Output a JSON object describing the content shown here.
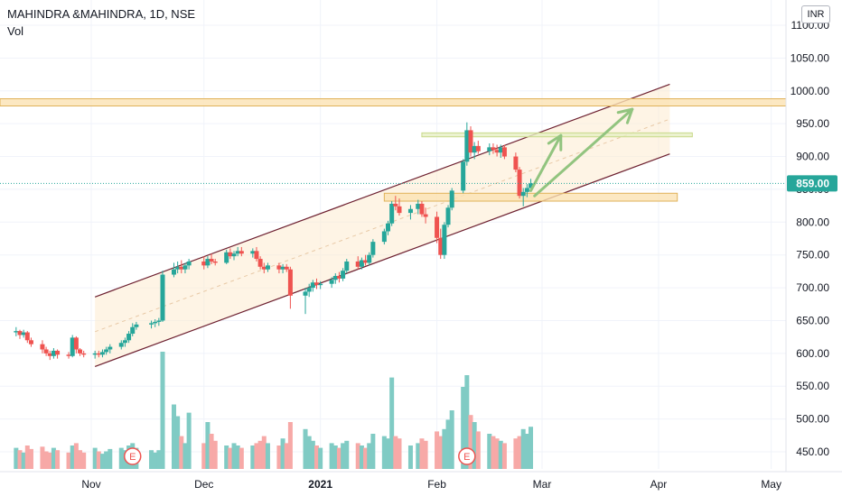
{
  "header": {
    "title": "MAHINDRA &MAHINDRA, 1D, NSE",
    "vol_label": "Vol"
  },
  "currency": "INR",
  "price_label": "859.00",
  "earnings_marker": "E",
  "colors": {
    "up": "#26a69a",
    "down": "#ef5350",
    "vol_up": "#80cbc4",
    "vol_down": "#f7a9a7",
    "channel": "#6d2030",
    "zone_fill": "#fbe2b3",
    "zone_stroke": "#e0b25a",
    "arrow": "#92c47f",
    "price_line": "#26a69a"
  },
  "chart_data": {
    "type": "candlestick",
    "title": "MAHINDRA &MAHINDRA, 1D, NSE",
    "y_ticks": [
      "1100.00",
      "1050.00",
      "1000.00",
      "950.00",
      "900.00",
      "850.00",
      "800.00",
      "750.00",
      "700.00",
      "650.00",
      "600.00",
      "550.00",
      "500.00",
      "450.00"
    ],
    "x_ticks": [
      {
        "label": "Nov",
        "date": "2020-11-01",
        "bold": false
      },
      {
        "label": "Dec",
        "date": "2020-12-01",
        "bold": false
      },
      {
        "label": "2021",
        "date": "2021-01-01",
        "bold": true
      },
      {
        "label": "Feb",
        "date": "2021-02-01",
        "bold": false
      },
      {
        "label": "Mar",
        "date": "2021-03-01",
        "bold": false
      },
      {
        "label": "Apr",
        "date": "2021-04-01",
        "bold": false
      },
      {
        "label": "May",
        "date": "2021-05-01",
        "bold": false
      }
    ],
    "last_price": 859.0,
    "candles": [
      [
        "2020-10-12",
        632,
        640,
        626,
        634,
        18
      ],
      [
        "2020-10-13",
        634,
        636,
        622,
        628,
        16
      ],
      [
        "2020-10-14",
        628,
        636,
        624,
        632,
        14
      ],
      [
        "2020-10-15",
        632,
        634,
        616,
        620,
        20
      ],
      [
        "2020-10-16",
        620,
        624,
        610,
        614,
        17
      ],
      [
        "2020-10-19",
        614,
        620,
        600,
        606,
        19
      ],
      [
        "2020-10-20",
        606,
        610,
        596,
        600,
        15
      ],
      [
        "2020-10-21",
        600,
        604,
        590,
        596,
        14
      ],
      [
        "2020-10-22",
        596,
        608,
        592,
        604,
        18
      ],
      [
        "2020-10-23",
        604,
        606,
        592,
        598,
        16
      ],
      [
        "2020-10-26",
        598,
        602,
        592,
        596,
        14
      ],
      [
        "2020-10-27",
        596,
        628,
        594,
        624,
        20
      ],
      [
        "2020-10-28",
        624,
        626,
        600,
        606,
        22
      ],
      [
        "2020-10-29",
        606,
        608,
        596,
        600,
        16
      ],
      [
        "2020-10-30",
        600,
        604,
        594,
        598,
        14
      ],
      [
        "2020-11-02",
        598,
        604,
        592,
        600,
        18
      ],
      [
        "2020-11-03",
        600,
        604,
        594,
        598,
        15
      ],
      [
        "2020-11-04",
        598,
        606,
        594,
        602,
        13
      ],
      [
        "2020-11-05",
        602,
        610,
        598,
        606,
        15
      ],
      [
        "2020-11-06",
        606,
        614,
        600,
        610,
        17
      ],
      [
        "2020-11-09",
        610,
        620,
        606,
        616,
        18
      ],
      [
        "2020-11-10",
        616,
        624,
        610,
        620,
        16
      ],
      [
        "2020-11-11",
        620,
        634,
        616,
        630,
        20
      ],
      [
        "2020-11-12",
        630,
        646,
        626,
        640,
        22
      ],
      [
        "2020-11-13",
        640,
        648,
        636,
        644,
        18
      ],
      [
        "2020-11-17",
        644,
        650,
        638,
        646,
        16
      ],
      [
        "2020-11-18",
        646,
        652,
        640,
        648,
        14
      ],
      [
        "2020-11-19",
        648,
        654,
        642,
        650,
        16
      ],
      [
        "2020-11-20",
        650,
        726,
        648,
        720,
        100
      ],
      [
        "2020-11-23",
        720,
        738,
        716,
        728,
        55
      ],
      [
        "2020-11-24",
        728,
        740,
        722,
        732,
        45
      ],
      [
        "2020-11-25",
        732,
        742,
        722,
        728,
        28
      ],
      [
        "2020-11-26",
        728,
        738,
        722,
        734,
        22
      ],
      [
        "2020-11-27",
        734,
        744,
        728,
        740,
        48
      ],
      [
        "2020-12-01",
        740,
        748,
        728,
        734,
        22
      ],
      [
        "2020-12-02",
        734,
        748,
        730,
        744,
        40
      ],
      [
        "2020-12-03",
        744,
        752,
        736,
        740,
        30
      ],
      [
        "2020-12-04",
        740,
        744,
        734,
        738,
        24
      ],
      [
        "2020-12-07",
        738,
        758,
        736,
        754,
        20
      ],
      [
        "2020-12-08",
        754,
        760,
        744,
        748,
        18
      ],
      [
        "2020-12-09",
        748,
        756,
        742,
        752,
        22
      ],
      [
        "2020-12-10",
        752,
        762,
        748,
        756,
        20
      ],
      [
        "2020-12-11",
        756,
        762,
        748,
        752,
        18
      ],
      [
        "2020-12-14",
        752,
        760,
        746,
        756,
        20
      ],
      [
        "2020-12-15",
        756,
        762,
        740,
        744,
        22
      ],
      [
        "2020-12-16",
        744,
        748,
        728,
        732,
        24
      ],
      [
        "2020-12-17",
        732,
        738,
        722,
        728,
        28
      ],
      [
        "2020-12-18",
        728,
        738,
        724,
        734,
        22
      ],
      [
        "2020-12-21",
        734,
        738,
        722,
        728,
        20
      ],
      [
        "2020-12-22",
        728,
        736,
        722,
        732,
        26
      ],
      [
        "2020-12-23",
        732,
        736,
        724,
        728,
        22
      ],
      [
        "2020-12-24",
        728,
        732,
        668,
        688,
        40
      ],
      [
        "2020-12-28",
        688,
        700,
        660,
        694,
        34
      ],
      [
        "2020-12-29",
        694,
        706,
        686,
        700,
        28
      ],
      [
        "2020-12-30",
        700,
        712,
        694,
        708,
        24
      ],
      [
        "2020-12-31",
        708,
        714,
        698,
        704,
        20
      ],
      [
        "2021-01-01",
        704,
        710,
        698,
        706,
        18
      ],
      [
        "2021-01-04",
        706,
        716,
        700,
        712,
        22
      ],
      [
        "2021-01-05",
        712,
        722,
        706,
        718,
        20
      ],
      [
        "2021-01-06",
        718,
        724,
        708,
        714,
        18
      ],
      [
        "2021-01-07",
        714,
        730,
        710,
        726,
        22
      ],
      [
        "2021-01-08",
        726,
        744,
        722,
        740,
        24
      ],
      [
        "2021-01-11",
        740,
        748,
        728,
        732,
        22
      ],
      [
        "2021-01-12",
        732,
        746,
        728,
        742,
        20
      ],
      [
        "2021-01-13",
        742,
        750,
        734,
        738,
        18
      ],
      [
        "2021-01-14",
        738,
        754,
        734,
        750,
        22
      ],
      [
        "2021-01-15",
        750,
        774,
        746,
        770,
        30
      ],
      [
        "2021-01-18",
        770,
        790,
        766,
        786,
        28
      ],
      [
        "2021-01-19",
        786,
        802,
        780,
        798,
        26
      ],
      [
        "2021-01-20",
        798,
        832,
        794,
        828,
        78
      ],
      [
        "2021-01-21",
        828,
        840,
        818,
        824,
        28
      ],
      [
        "2021-01-22",
        824,
        836,
        810,
        814,
        26
      ],
      [
        "2021-01-25",
        814,
        826,
        804,
        820,
        20
      ],
      [
        "2021-01-27",
        820,
        834,
        812,
        828,
        22
      ],
      [
        "2021-01-28",
        828,
        832,
        808,
        812,
        26
      ],
      [
        "2021-01-29",
        812,
        822,
        798,
        808,
        24
      ],
      [
        "2021-02-01",
        808,
        816,
        768,
        776,
        32
      ],
      [
        "2021-02-02",
        776,
        790,
        744,
        750,
        28
      ],
      [
        "2021-02-03",
        750,
        800,
        744,
        796,
        34
      ],
      [
        "2021-02-04",
        796,
        826,
        792,
        822,
        42
      ],
      [
        "2021-02-05",
        822,
        852,
        818,
        848,
        50
      ],
      [
        "2021-02-08",
        848,
        896,
        844,
        892,
        70
      ],
      [
        "2021-02-09",
        892,
        952,
        886,
        940,
        80
      ],
      [
        "2021-02-10",
        940,
        946,
        900,
        906,
        46
      ],
      [
        "2021-02-11",
        906,
        922,
        896,
        916,
        40
      ],
      [
        "2021-02-12",
        916,
        924,
        904,
        908,
        32
      ],
      [
        "2021-02-15",
        908,
        920,
        902,
        914,
        30
      ],
      [
        "2021-02-16",
        914,
        920,
        904,
        910,
        28
      ],
      [
        "2021-02-17",
        910,
        918,
        900,
        906,
        26
      ],
      [
        "2021-02-18",
        906,
        918,
        898,
        914,
        24
      ],
      [
        "2021-02-19",
        914,
        918,
        896,
        900,
        22
      ],
      [
        "2021-02-22",
        900,
        906,
        876,
        880,
        26
      ],
      [
        "2021-02-23",
        880,
        884,
        836,
        840,
        28
      ],
      [
        "2021-02-24",
        840,
        852,
        824,
        846,
        34
      ],
      [
        "2021-02-25",
        846,
        858,
        838,
        852,
        30
      ],
      [
        "2021-02-26",
        852,
        866,
        848,
        859,
        36
      ]
    ],
    "annotations": {
      "channel_upper": [
        [
          "2020-11-02",
          686
        ],
        [
          "2021-04-04",
          1010
        ]
      ],
      "channel_lower": [
        [
          "2020-11-02",
          580
        ],
        [
          "2021-04-04",
          904
        ]
      ],
      "horizontal_zones": [
        {
          "from": null,
          "to": null,
          "low": 977,
          "high": 988
        },
        {
          "from": "2021-01-18",
          "to": "2021-04-06",
          "low": 832,
          "high": 844
        },
        {
          "from": "2021-01-28",
          "to": "2021-04-10",
          "low": 930,
          "high": 936
        }
      ],
      "arrows": [
        [
          [
            "2021-02-26",
            848
          ],
          [
            "2021-03-06",
            932
          ]
        ],
        [
          [
            "2021-02-27",
            840
          ],
          [
            "2021-03-25",
            972
          ]
        ]
      ],
      "earnings": [
        "2020-11-12",
        "2021-02-09"
      ]
    }
  }
}
